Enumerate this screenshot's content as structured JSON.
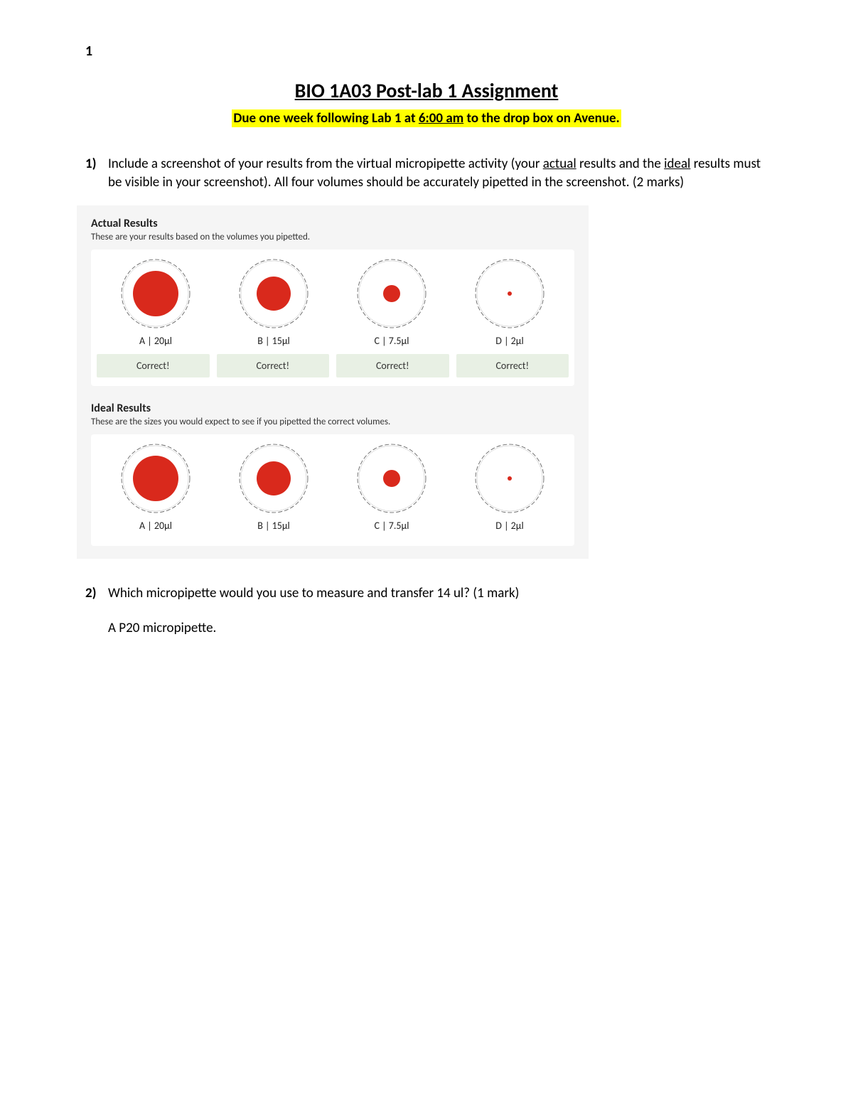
{
  "page_number": "1",
  "title": "BIO 1A03 Post-lab 1 Assignment",
  "due": {
    "pre": "Due one week following Lab 1 at ",
    "time": "6:00 am",
    "post": " to the drop box on Avenue."
  },
  "q1": {
    "num": "1)",
    "pre": "Include a screenshot of your results from the virtual micropipette activity (your ",
    "u1": "actual",
    "mid": " results and the ",
    "u2": "ideal",
    "post": " results must be visible in your screenshot). All four volumes should be accurately pipetted in the screenshot. (2 marks)"
  },
  "results": {
    "actual": {
      "title": "Actual Results",
      "subtitle": "These are your results based on the volumes you pipetted.",
      "wells": [
        {
          "label": "A | 20µl",
          "dot_radius": 32,
          "status": "Correct!"
        },
        {
          "label": "B | 15µl",
          "dot_radius": 24,
          "status": "Correct!"
        },
        {
          "label": "C | 7.5µl",
          "dot_radius": 12,
          "status": "Correct!"
        },
        {
          "label": "D | 2µl",
          "dot_radius": 3,
          "status": "Correct!"
        }
      ]
    },
    "ideal": {
      "title": "Ideal Results",
      "subtitle": "These are the sizes you would expect to see if you pipetted the correct volumes.",
      "wells": [
        {
          "label": "A | 20µl",
          "dot_radius": 32
        },
        {
          "label": "B | 15µl",
          "dot_radius": 24
        },
        {
          "label": "C | 7.5µl",
          "dot_radius": 12
        },
        {
          "label": "D | 2µl",
          "dot_radius": 3
        }
      ]
    },
    "colors": {
      "dot": "#d9291c",
      "well_ring": "#555555",
      "panel_bg": "#f5f5f5",
      "card_bg": "#ffffff",
      "chip_bg": "#e8f0e4"
    },
    "well_outer_r": 48
  },
  "q2": {
    "num": "2)",
    "text": "Which micropipette would you use to measure and transfer 14 ul? (1 mark)",
    "answer": "A P20 micropipette."
  }
}
